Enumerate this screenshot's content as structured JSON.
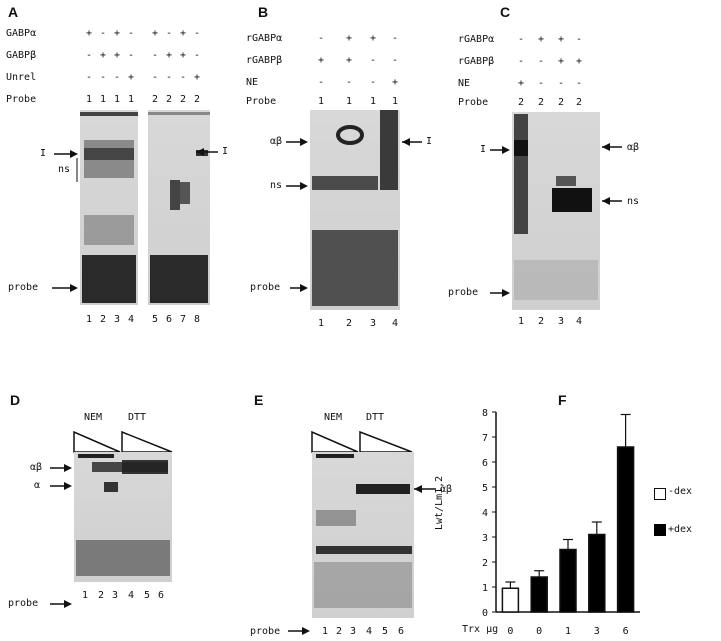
{
  "panels": {
    "A": {
      "letter": "A",
      "rows": [
        {
          "label": "GABPα",
          "signs": [
            "+",
            "-",
            "+",
            "-",
            "+",
            "-",
            "+",
            "-"
          ]
        },
        {
          "label": "GABPβ",
          "signs": [
            "-",
            "+",
            "+",
            "-",
            "-",
            "+",
            "+",
            "-"
          ]
        },
        {
          "label": "Unrel",
          "signs": [
            "-",
            "-",
            "-",
            "+",
            "-",
            "-",
            "-",
            "+"
          ]
        },
        {
          "label": "Probe",
          "signs": [
            "1",
            "1",
            "1",
            "1",
            "2",
            "2",
            "2",
            "2"
          ]
        }
      ],
      "markers_left": {
        "I": "I",
        "ns": "ns",
        "probe": "probe"
      },
      "markers_right": {
        "I": "I"
      },
      "lanes": [
        "1",
        "2",
        "3",
        "4",
        "5",
        "6",
        "7",
        "8"
      ]
    },
    "B": {
      "letter": "B",
      "rows": [
        {
          "label": "rGABPα",
          "signs": [
            "-",
            "+",
            "+",
            "-"
          ]
        },
        {
          "label": "rGABPβ",
          "signs": [
            "+",
            "+",
            "-",
            "-"
          ]
        },
        {
          "label": "NE",
          "signs": [
            "-",
            "-",
            "-",
            "+"
          ]
        },
        {
          "label": "Probe",
          "signs": [
            "1",
            "1",
            "1",
            "1"
          ]
        }
      ],
      "markers_left": {
        "ab": "αβ",
        "ns": "ns",
        "probe": "probe"
      },
      "markers_right": {
        "I": "I"
      },
      "lanes": [
        "1",
        "2",
        "3",
        "4"
      ]
    },
    "C": {
      "letter": "C",
      "rows": [
        {
          "label": "rGABPα",
          "signs": [
            "-",
            "+",
            "+",
            "-"
          ]
        },
        {
          "label": "rGABPβ",
          "signs": [
            "-",
            "-",
            "+",
            "+"
          ]
        },
        {
          "label": "NE",
          "signs": [
            "+",
            "-",
            "-",
            "-"
          ]
        },
        {
          "label": "Probe",
          "signs": [
            "2",
            "2",
            "2",
            "2"
          ]
        }
      ],
      "markers_left": {
        "I": "I",
        "probe": "probe"
      },
      "markers_right": {
        "ab": "αβ",
        "ns": "ns"
      },
      "lanes": [
        "1",
        "2",
        "3",
        "4"
      ]
    },
    "D": {
      "letter": "D",
      "headers": {
        "nem": "NEM",
        "dtt": "DTT"
      },
      "markers_left": {
        "ab": "αβ",
        "a": "α",
        "probe": "probe"
      },
      "lanes": [
        "1",
        "2",
        "3",
        "4",
        "5",
        "6"
      ]
    },
    "E": {
      "letter": "E",
      "headers": {
        "nem": "NEM",
        "dtt": "DTT"
      },
      "markers_left": {
        "probe": "probe"
      },
      "markers_right": {
        "ab": "αβ"
      },
      "lanes": [
        "1",
        "2",
        "3",
        "4",
        "5",
        "6"
      ]
    },
    "F": {
      "letter": "F",
      "legend": {
        "minus": "-dex",
        "plus": "+dex"
      }
    }
  },
  "chart_data": {
    "type": "bar",
    "title": "",
    "xlabel": "Trx μg",
    "ylabel": "Lwt/Lm1,2",
    "categories": [
      "0",
      "0",
      "1",
      "3",
      "6"
    ],
    "series": [
      {
        "name": "-dex",
        "values": [
          0.95,
          null,
          null,
          null,
          null
        ],
        "errors": [
          0.25,
          null,
          null,
          null,
          null
        ],
        "color": "#ffffff"
      },
      {
        "name": "+dex",
        "values": [
          null,
          1.4,
          2.5,
          3.1,
          6.6
        ],
        "errors": [
          null,
          0.25,
          0.4,
          0.5,
          1.3
        ],
        "color": "#000000"
      }
    ],
    "ylim": [
      0,
      8
    ],
    "yticks": [
      "0",
      "1",
      "2",
      "3",
      "4",
      "5",
      "6",
      "7",
      "8"
    ],
    "legend_position": "right"
  }
}
